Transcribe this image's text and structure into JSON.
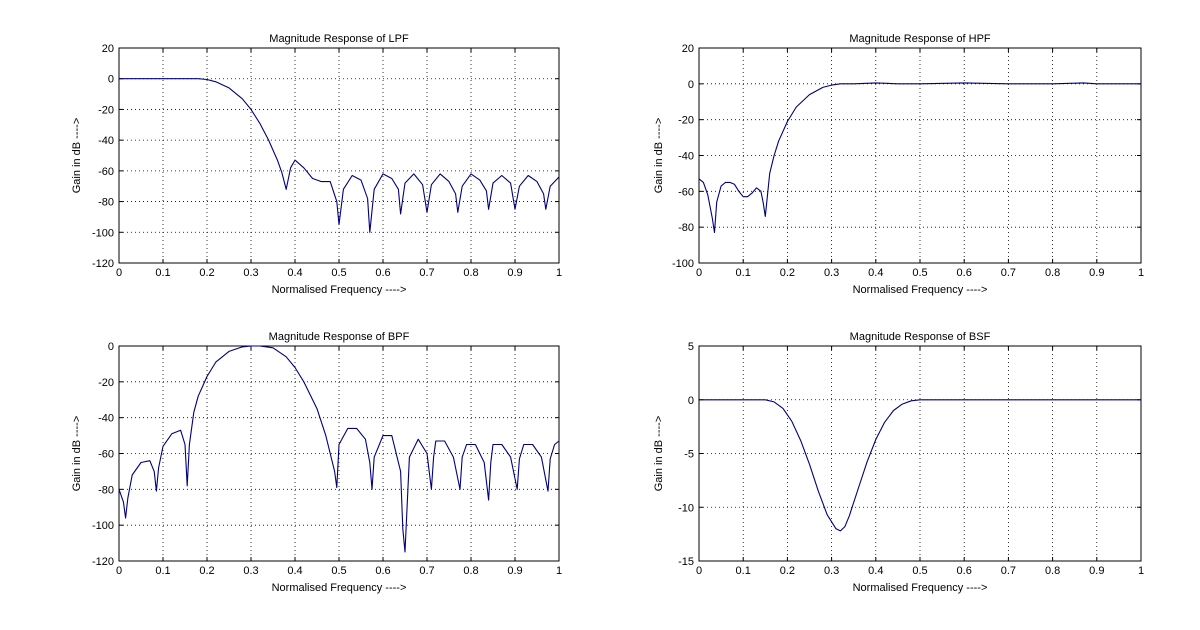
{
  "chart_data": [
    {
      "type": "line",
      "title": "Magnitude Response of LPF",
      "xlabel": "Normalised Frequency ---->",
      "ylabel": "Gain in dB ---->",
      "xlim": [
        0,
        1
      ],
      "ylim": [
        -120,
        20
      ],
      "xticks": [
        "0",
        "0.1",
        "0.2",
        "0.3",
        "0.4",
        "0.5",
        "0.6",
        "0.7",
        "0.8",
        "0.9",
        "1"
      ],
      "yticks": [
        "-120",
        "-100",
        "-80",
        "-60",
        "-40",
        "-20",
        "0",
        "20"
      ],
      "grid": true,
      "series": [
        {
          "color": "#00007f",
          "x": [
            0,
            0.05,
            0.1,
            0.15,
            0.18,
            0.2,
            0.22,
            0.25,
            0.28,
            0.3,
            0.32,
            0.34,
            0.36,
            0.37,
            0.38,
            0.39,
            0.4,
            0.42,
            0.44,
            0.46,
            0.48,
            0.495,
            0.5,
            0.51,
            0.53,
            0.55,
            0.565,
            0.57,
            0.58,
            0.6,
            0.62,
            0.635,
            0.64,
            0.65,
            0.67,
            0.69,
            0.7,
            0.71,
            0.73,
            0.75,
            0.765,
            0.77,
            0.78,
            0.8,
            0.82,
            0.835,
            0.84,
            0.85,
            0.87,
            0.89,
            0.9,
            0.91,
            0.93,
            0.95,
            0.965,
            0.97,
            0.98,
            1.0
          ],
          "y": [
            0,
            0,
            0,
            0,
            0,
            -0.5,
            -2,
            -6,
            -13,
            -20,
            -29,
            -40,
            -53,
            -61,
            -72,
            -58,
            -53,
            -58,
            -65,
            -67,
            -67,
            -80,
            -95,
            -72,
            -63,
            -66,
            -78,
            -100,
            -72,
            -62,
            -65,
            -72,
            -88,
            -68,
            -62,
            -69,
            -87,
            -69,
            -62,
            -67,
            -75,
            -87,
            -70,
            -62,
            -66,
            -73,
            -85,
            -68,
            -63,
            -68,
            -85,
            -70,
            -63,
            -67,
            -75,
            -85,
            -70,
            -64
          ]
        }
      ]
    },
    {
      "type": "line",
      "title": "Magnitude Response of HPF",
      "xlabel": "Normalised Frequency ---->",
      "ylabel": "Gain in dB ---->",
      "xlim": [
        0,
        1
      ],
      "ylim": [
        -100,
        20
      ],
      "xticks": [
        "0",
        "0.1",
        "0.2",
        "0.3",
        "0.4",
        "0.5",
        "0.6",
        "0.7",
        "0.8",
        "0.9",
        "1"
      ],
      "yticks": [
        "-100",
        "-80",
        "-60",
        "-40",
        "-20",
        "0",
        "20"
      ],
      "grid": true,
      "series": [
        {
          "color": "#00007f",
          "x": [
            0,
            0.01,
            0.02,
            0.03,
            0.035,
            0.04,
            0.05,
            0.06,
            0.07,
            0.08,
            0.09,
            0.1,
            0.11,
            0.12,
            0.13,
            0.14,
            0.145,
            0.15,
            0.155,
            0.16,
            0.17,
            0.18,
            0.2,
            0.22,
            0.25,
            0.28,
            0.3,
            0.32,
            0.35,
            0.4,
            0.45,
            0.5,
            0.6,
            0.7,
            0.8,
            0.87,
            0.9,
            1.0
          ],
          "y": [
            -53,
            -55,
            -62,
            -75,
            -83,
            -66,
            -57,
            -55,
            -55,
            -56,
            -60,
            -63,
            -63,
            -61,
            -58,
            -60,
            -66,
            -74,
            -62,
            -50,
            -40,
            -32,
            -21,
            -13,
            -6,
            -2,
            -0.7,
            0,
            0,
            0.5,
            0,
            0,
            0.5,
            0,
            0,
            0.5,
            0,
            0
          ]
        }
      ]
    },
    {
      "type": "line",
      "title": "Magnitude Response of BPF",
      "xlabel": "Normalised Frequency ---->",
      "ylabel": "Gain in dB ---->",
      "xlim": [
        0,
        1
      ],
      "ylim": [
        -120,
        0
      ],
      "xticks": [
        "0",
        "0.1",
        "0.2",
        "0.3",
        "0.4",
        "0.5",
        "0.6",
        "0.7",
        "0.8",
        "0.9",
        "1"
      ],
      "yticks": [
        "-120",
        "-100",
        "-80",
        "-60",
        "-40",
        "-20",
        "0"
      ],
      "grid": true,
      "series": [
        {
          "color": "#00007f",
          "x": [
            0,
            0.01,
            0.015,
            0.02,
            0.03,
            0.05,
            0.07,
            0.08,
            0.085,
            0.09,
            0.1,
            0.12,
            0.14,
            0.15,
            0.155,
            0.16,
            0.17,
            0.18,
            0.2,
            0.22,
            0.25,
            0.28,
            0.3,
            0.32,
            0.35,
            0.38,
            0.4,
            0.42,
            0.45,
            0.47,
            0.48,
            0.49,
            0.495,
            0.5,
            0.52,
            0.54,
            0.56,
            0.57,
            0.575,
            0.58,
            0.6,
            0.62,
            0.64,
            0.645,
            0.65,
            0.66,
            0.68,
            0.7,
            0.71,
            0.715,
            0.72,
            0.74,
            0.76,
            0.775,
            0.78,
            0.79,
            0.81,
            0.83,
            0.84,
            0.845,
            0.85,
            0.87,
            0.89,
            0.905,
            0.91,
            0.92,
            0.94,
            0.96,
            0.975,
            0.98,
            0.99,
            1.0
          ],
          "y": [
            -80,
            -87,
            -96,
            -85,
            -72,
            -65,
            -64,
            -70,
            -81,
            -68,
            -56,
            -49,
            -47,
            -55,
            -78,
            -55,
            -37,
            -28,
            -17,
            -9,
            -3,
            -0.5,
            0,
            0,
            -1,
            -6,
            -12,
            -20,
            -35,
            -50,
            -60,
            -70,
            -79,
            -55,
            -46,
            -46,
            -52,
            -65,
            -80,
            -62,
            -50,
            -50,
            -70,
            -102,
            -115,
            -62,
            -52,
            -60,
            -80,
            -62,
            -53,
            -53,
            -62,
            -80,
            -62,
            -55,
            -55,
            -65,
            -86,
            -65,
            -55,
            -55,
            -62,
            -80,
            -63,
            -55,
            -55,
            -62,
            -81,
            -63,
            -55,
            -53
          ]
        }
      ]
    },
    {
      "type": "line",
      "title": "Magnitude Response of BSF",
      "xlabel": "Normalised Frequency ---->",
      "ylabel": "Gain in dB ---->",
      "xlim": [
        0,
        1
      ],
      "ylim": [
        -15,
        5
      ],
      "xticks": [
        "0",
        "0.1",
        "0.2",
        "0.3",
        "0.4",
        "0.5",
        "0.6",
        "0.7",
        "0.8",
        "0.9",
        "1"
      ],
      "yticks": [
        "-15",
        "-10",
        "-5",
        "0",
        "5"
      ],
      "grid": true,
      "series": [
        {
          "color": "#00007f",
          "x": [
            0,
            0.05,
            0.1,
            0.15,
            0.17,
            0.19,
            0.21,
            0.23,
            0.25,
            0.27,
            0.29,
            0.31,
            0.32,
            0.33,
            0.34,
            0.36,
            0.38,
            0.4,
            0.42,
            0.44,
            0.46,
            0.48,
            0.5,
            0.52,
            0.6,
            0.7,
            0.8,
            0.9,
            1.0
          ],
          "y": [
            0,
            0,
            0,
            0,
            -0.2,
            -0.8,
            -2,
            -3.8,
            -6,
            -8.5,
            -10.7,
            -12,
            -12.2,
            -11.8,
            -10.8,
            -8.3,
            -5.8,
            -3.7,
            -2.1,
            -1,
            -0.4,
            -0.1,
            0,
            0,
            0,
            0,
            0,
            0,
            0
          ]
        }
      ]
    }
  ]
}
